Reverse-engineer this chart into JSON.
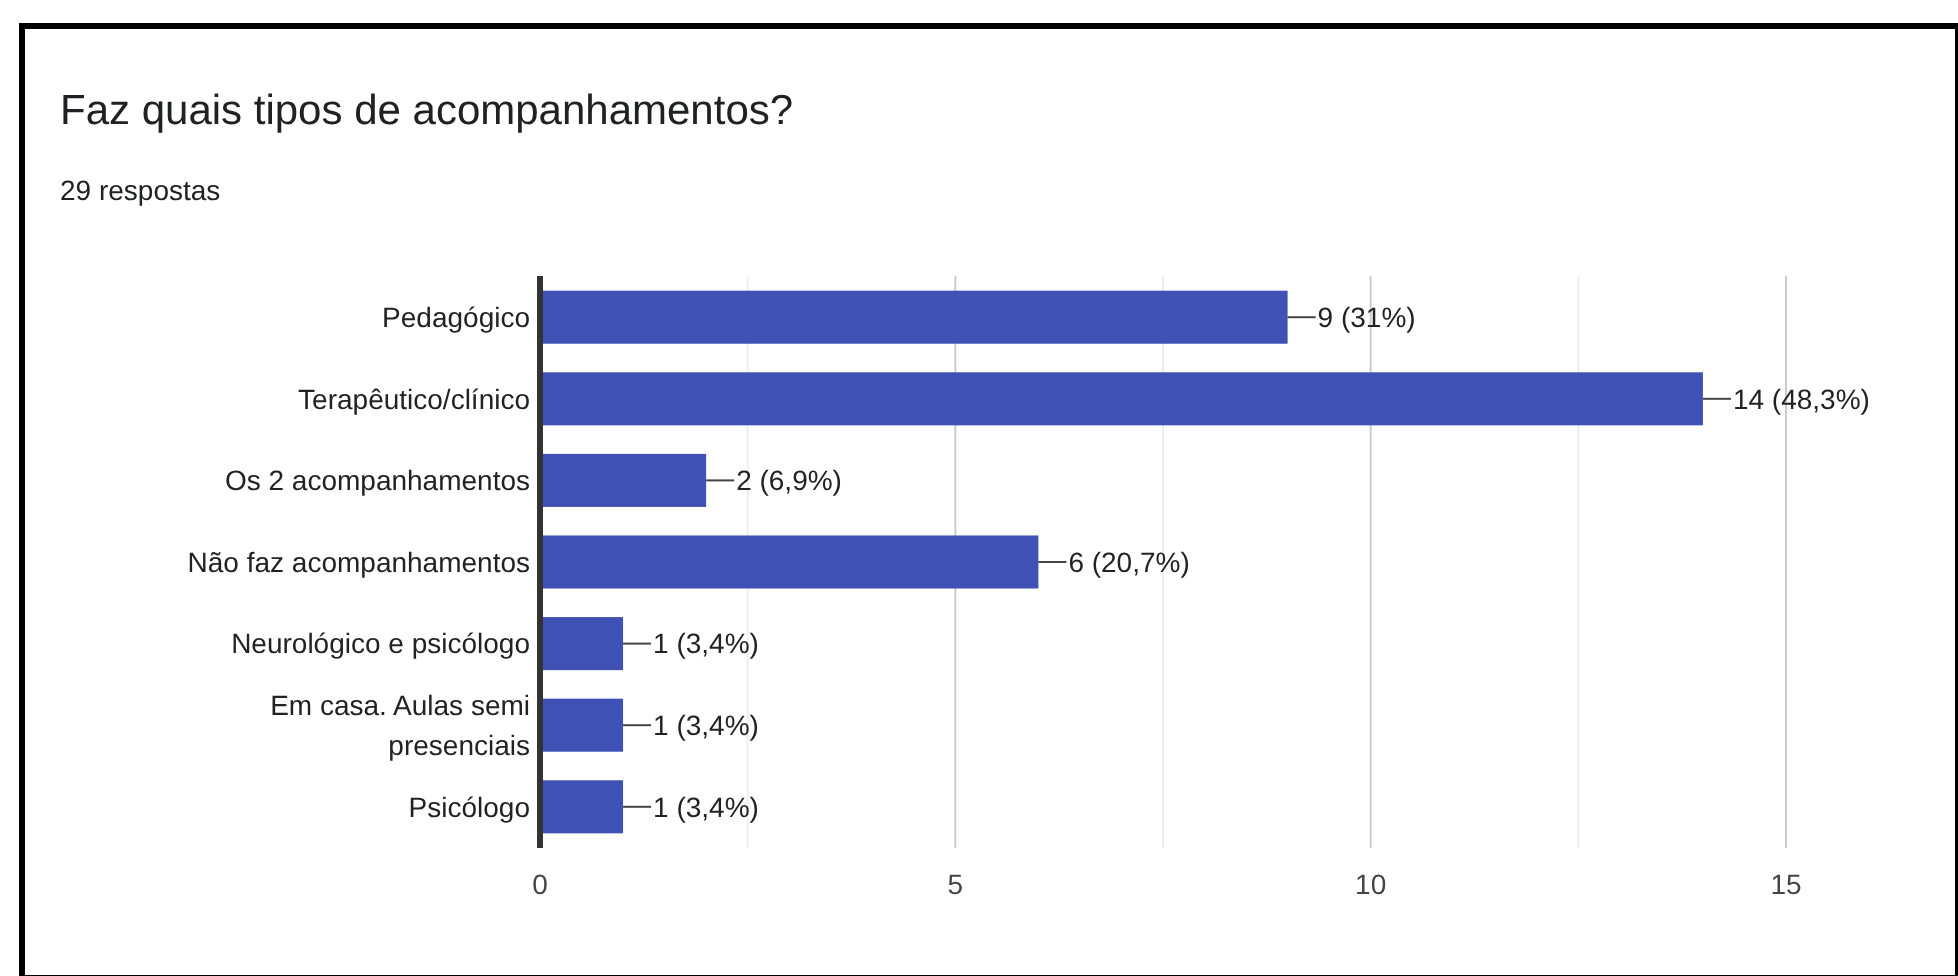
{
  "chart_data": {
    "type": "bar",
    "orientation": "horizontal",
    "title": "Faz quais tipos de acompanhamentos?",
    "subtitle": "29 respostas",
    "categories": [
      "Pedagógico",
      "Terapêutico/clínico",
      "Os 2 acompanhamentos",
      "Não faz acompanhamentos",
      "Neurológico e psicólogo",
      "Em casa. Aulas semi presenciais",
      "Psicólogo"
    ],
    "values": [
      9,
      14,
      2,
      6,
      1,
      1,
      1
    ],
    "value_labels": [
      "9 (31%)",
      "14 (48,3%)",
      "2 (6,9%)",
      "6 (20,7%)",
      "1 (3,4%)",
      "1 (3,4%)",
      "1 (3,4%)"
    ],
    "color": "#3f51b5",
    "xlim": [
      0,
      15
    ],
    "xticks": [
      0,
      {
        "value": 2.5,
        "label": null
      },
      5,
      {
        "value": 7.5,
        "label": null
      },
      10,
      {
        "value": 12.5,
        "label": null
      },
      15
    ],
    "grid": "x"
  }
}
